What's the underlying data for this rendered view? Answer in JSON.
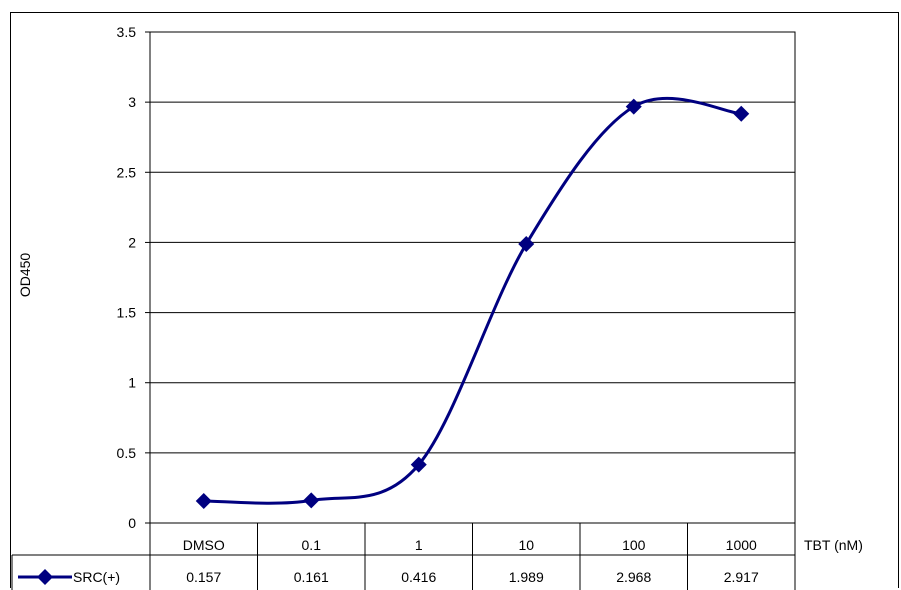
{
  "chart_data": {
    "type": "line",
    "ylabel": "OD450",
    "xlabel": "TBT (nM)",
    "categories": [
      "DMSO",
      "0.1",
      "1",
      "10",
      "100",
      "1000"
    ],
    "ylim": [
      0,
      3.5
    ],
    "yticks": [
      "0",
      "0.5",
      "1",
      "1.5",
      "2",
      "2.5",
      "3",
      "3.5"
    ],
    "grid": true,
    "legend": "data-table",
    "series": [
      {
        "name": "SRC(+)",
        "values": [
          0.157,
          0.161,
          0.416,
          1.989,
          2.968,
          2.917
        ],
        "labels": [
          "0.157",
          "0.161",
          "0.416",
          "1.989",
          "2.968",
          "2.917"
        ]
      }
    ],
    "colors": {
      "series": "#000080",
      "grid": "#000000"
    }
  }
}
